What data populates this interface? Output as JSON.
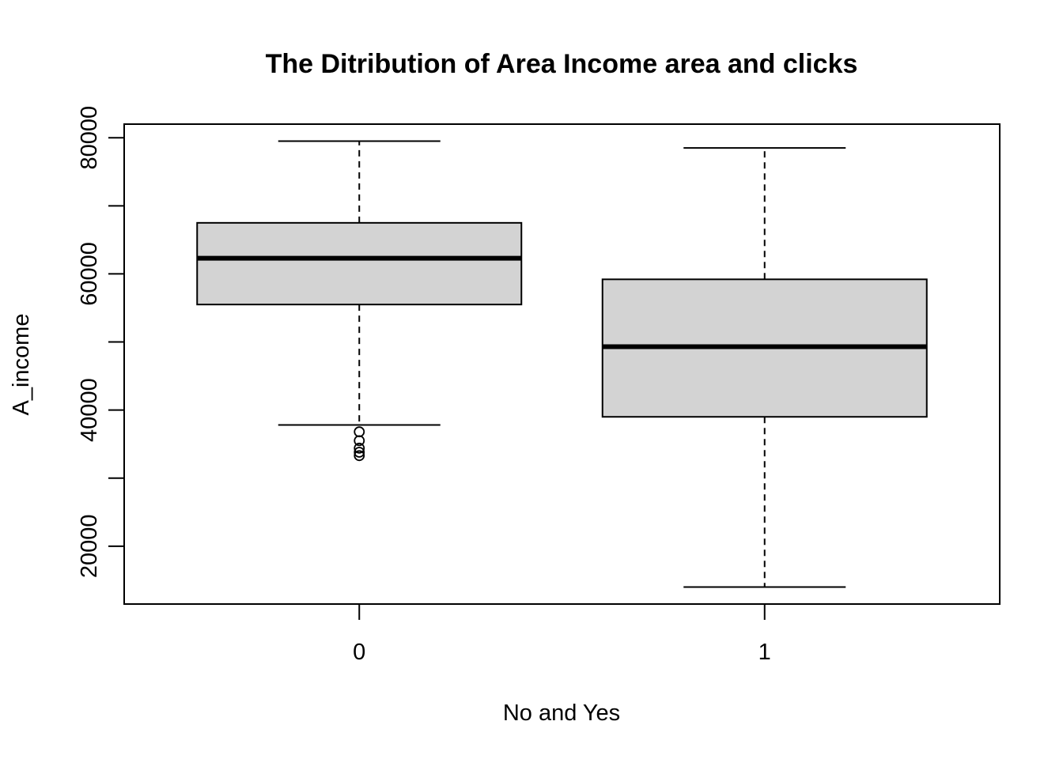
{
  "chart_data": {
    "type": "boxplot",
    "title": "The Ditribution of Area Income area and clicks",
    "xlabel": "No and Yes",
    "ylabel": "A_income",
    "categories": [
      "0",
      "1"
    ],
    "ylim": [
      11500,
      82000
    ],
    "yticks": [
      20000,
      40000,
      60000,
      80000
    ],
    "ytick_labels": [
      "20000",
      "40000",
      "60000",
      "80000"
    ],
    "grid": false,
    "box_fill": "#d3d3d3",
    "boxes": [
      {
        "category": "0",
        "whisker_low": 37800,
        "q1": 55500,
        "median": 62300,
        "q3": 67500,
        "whisker_high": 79500,
        "outliers": [
          36800,
          35500,
          34400,
          33800,
          33300
        ]
      },
      {
        "category": "1",
        "whisker_low": 14000,
        "q1": 39000,
        "median": 49300,
        "q3": 59200,
        "whisker_high": 78500,
        "outliers": []
      }
    ]
  }
}
